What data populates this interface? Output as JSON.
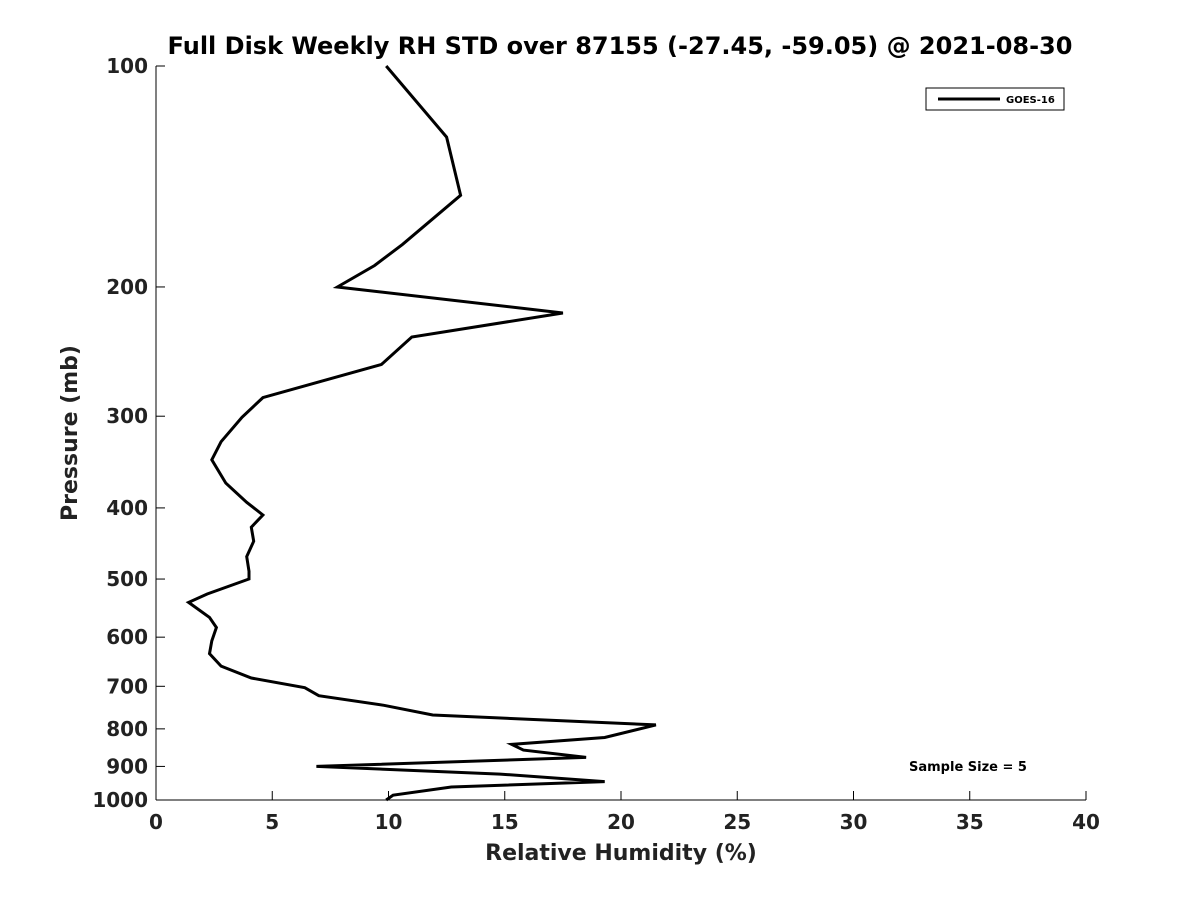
{
  "chart_data": {
    "type": "line",
    "title": "Full Disk Weekly RH STD over 87155 (-27.45, -59.05) @ 2021-08-30",
    "xlabel": "Relative Humidity (%)",
    "ylabel": "Pressure (mb)",
    "xlim": [
      0,
      40
    ],
    "ylim": [
      1000,
      100
    ],
    "yscale": "log",
    "x_ticks": [
      0,
      5,
      10,
      15,
      20,
      25,
      30,
      35,
      40
    ],
    "y_ticks": [
      100,
      200,
      300,
      400,
      500,
      600,
      700,
      800,
      900,
      1000
    ],
    "grid": false,
    "legend_position": "top-right",
    "annotation": "Sample Size = 5",
    "series": [
      {
        "name": "GOES-16",
        "color": "#000000",
        "points": [
          [
            9.9,
            100
          ],
          [
            12.5,
            125
          ],
          [
            13.1,
            150
          ],
          [
            10.6,
            175
          ],
          [
            9.4,
            187
          ],
          [
            7.8,
            200
          ],
          [
            17.5,
            217
          ],
          [
            11.0,
            234
          ],
          [
            9.7,
            255
          ],
          [
            4.6,
            283
          ],
          [
            3.7,
            301
          ],
          [
            2.8,
            325
          ],
          [
            2.4,
            344
          ],
          [
            3.0,
            370
          ],
          [
            3.9,
            393
          ],
          [
            4.6,
            409
          ],
          [
            4.1,
            425
          ],
          [
            4.2,
            444
          ],
          [
            3.9,
            466
          ],
          [
            4.0,
            488
          ],
          [
            4.0,
            500
          ],
          [
            2.2,
            524
          ],
          [
            1.4,
            538
          ],
          [
            2.3,
            564
          ],
          [
            2.6,
            582
          ],
          [
            2.4,
            607
          ],
          [
            2.3,
            632
          ],
          [
            2.8,
            657
          ],
          [
            4.1,
            682
          ],
          [
            6.4,
            703
          ],
          [
            7.0,
            721
          ],
          [
            9.8,
            743
          ],
          [
            11.9,
            766
          ],
          [
            21.5,
            790
          ],
          [
            19.3,
            822
          ],
          [
            15.3,
            840
          ],
          [
            15.8,
            855
          ],
          [
            18.5,
            875
          ],
          [
            6.9,
            900
          ],
          [
            14.8,
            922
          ],
          [
            19.3,
            944
          ],
          [
            12.7,
            960
          ],
          [
            10.2,
            985
          ],
          [
            9.9,
            1000
          ]
        ]
      }
    ]
  }
}
